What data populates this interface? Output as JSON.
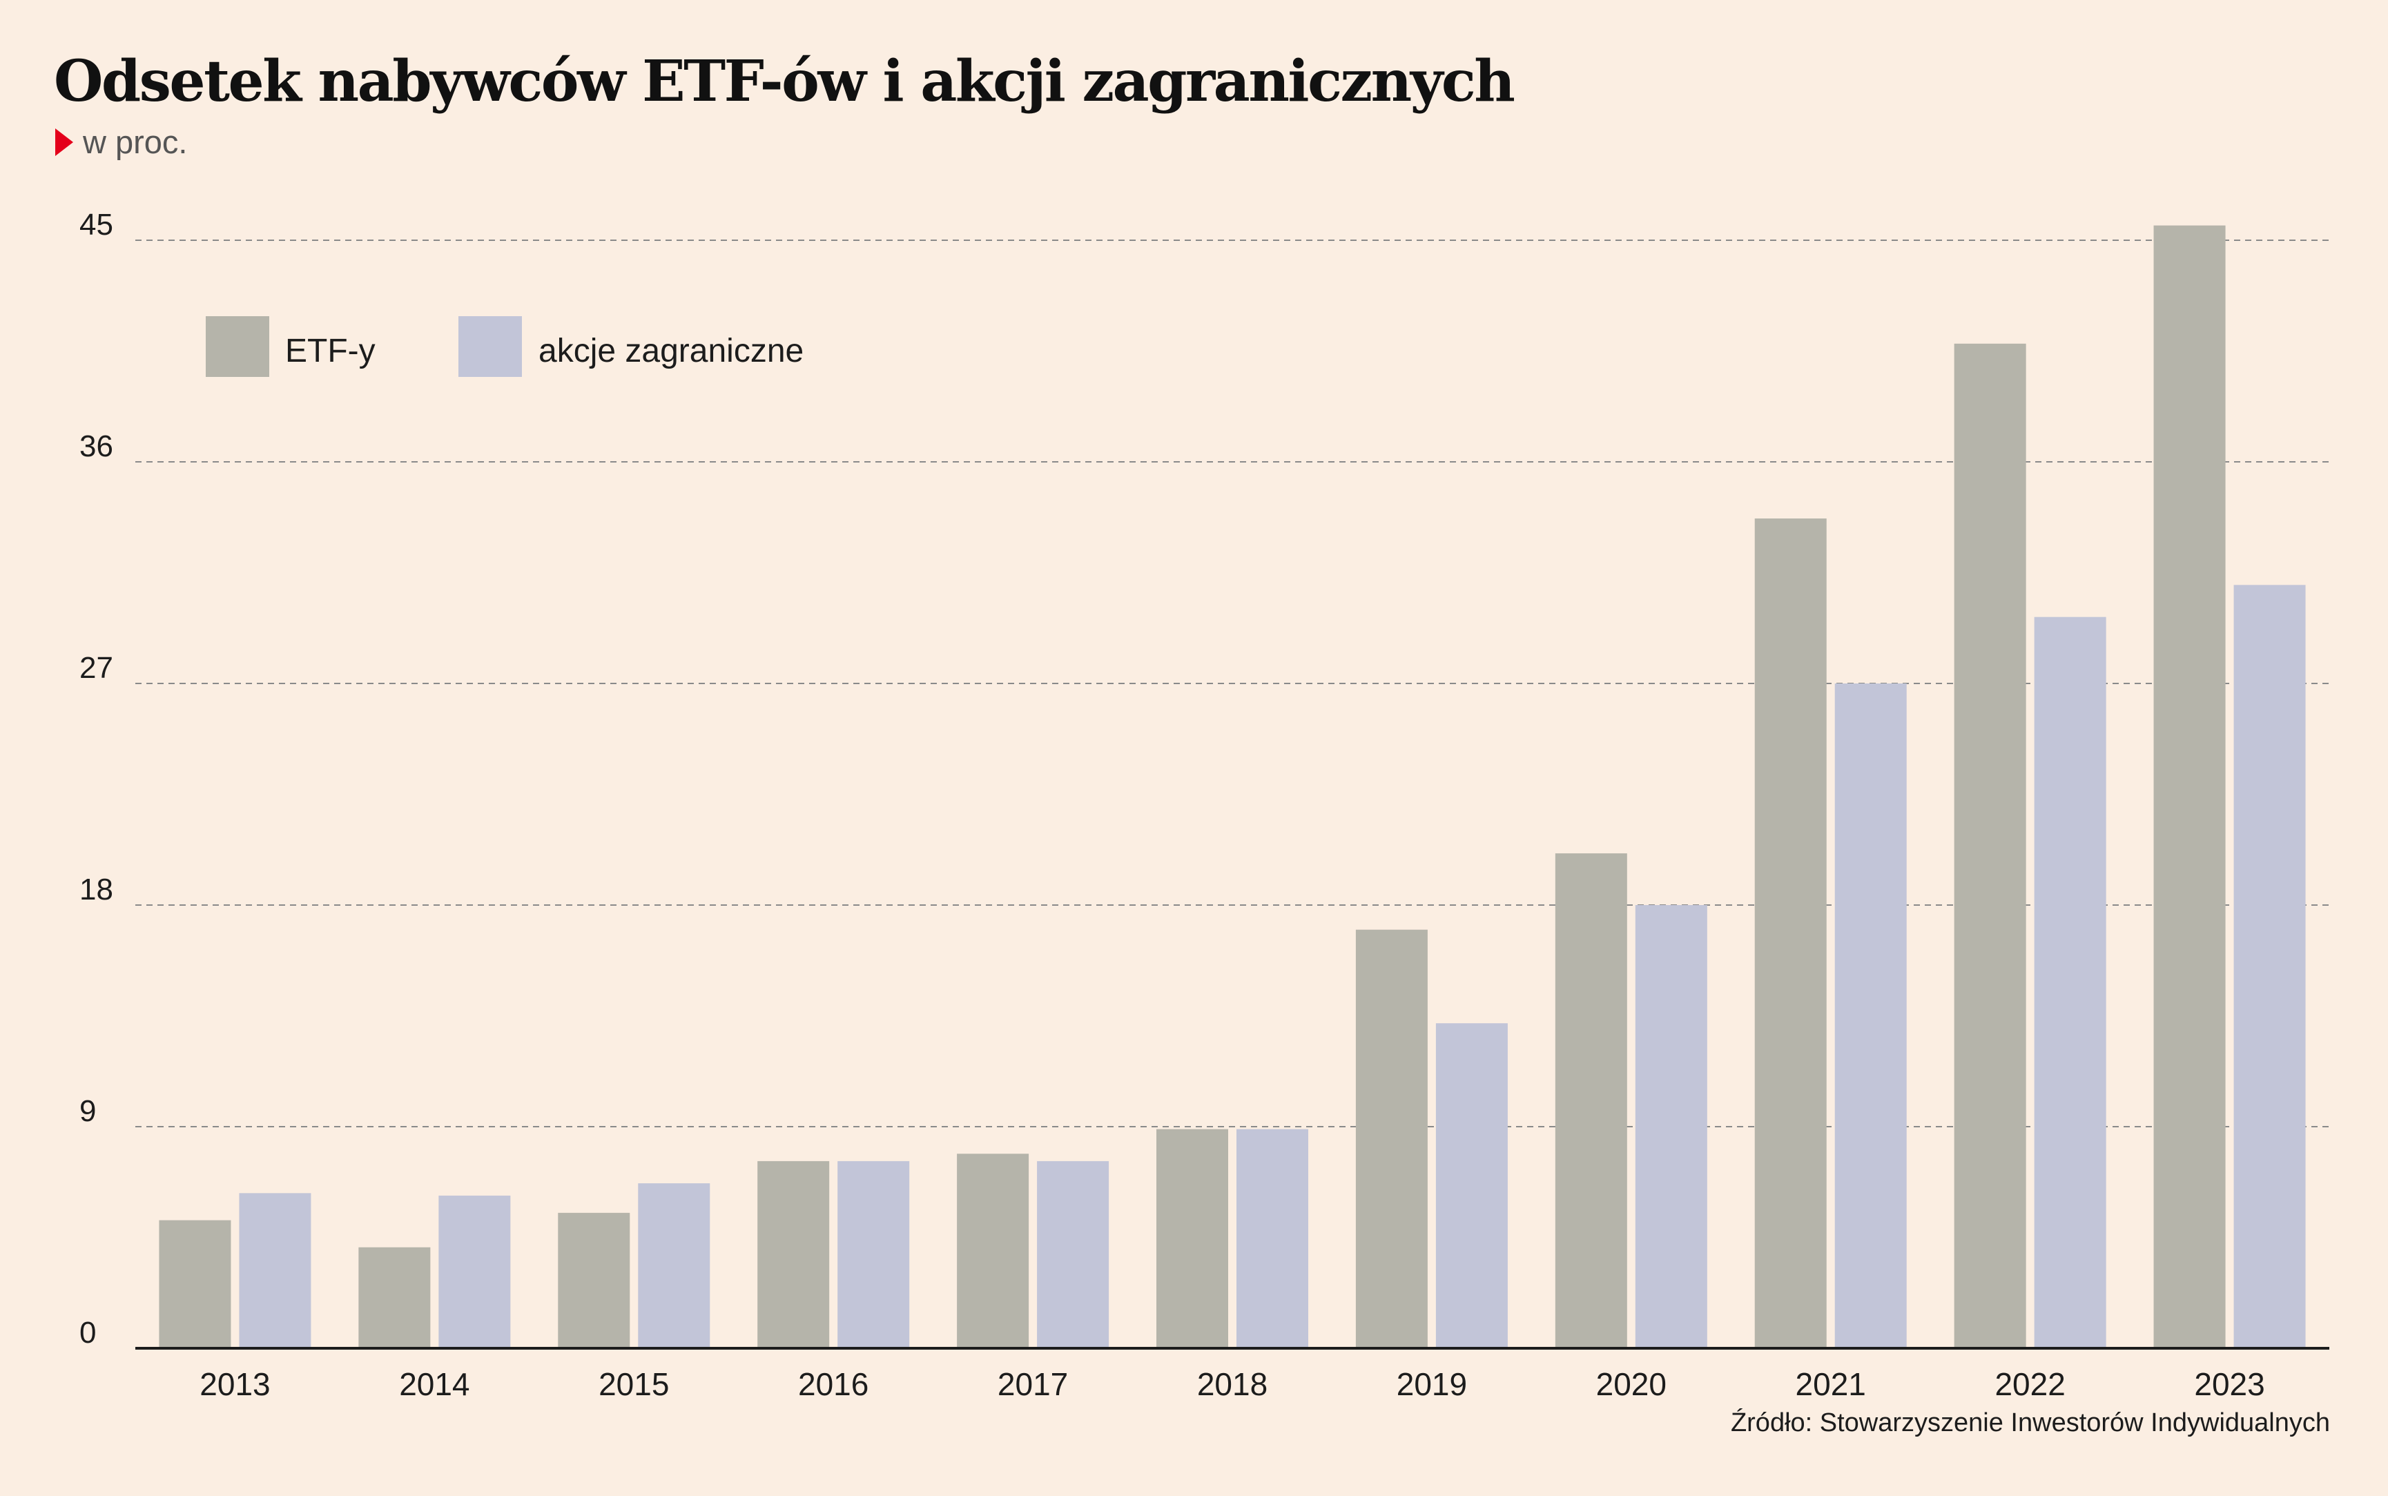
{
  "chart_data": {
    "type": "bar",
    "title": "Odsetek nabywców ETF-ów i akcji zagranicznych",
    "subtitle": "w proc.",
    "categories": [
      "2013",
      "2014",
      "2015",
      "2016",
      "2017",
      "2018",
      "2019",
      "2020",
      "2021",
      "2022",
      "2023"
    ],
    "series": [
      {
        "name": "ETF-y",
        "color": "#b5b4aa",
        "values": [
          5.2,
          4.1,
          5.5,
          7.6,
          7.9,
          8.9,
          17.0,
          20.1,
          33.7,
          40.8,
          45.6
        ]
      },
      {
        "name": "akcje zagraniczne",
        "color": "#c2c5d8",
        "values": [
          6.3,
          6.2,
          6.7,
          7.6,
          7.6,
          8.9,
          13.2,
          18.0,
          27.0,
          29.7,
          31.0
        ]
      }
    ],
    "yticks": [
      "0",
      "9",
      "18",
      "27",
      "36",
      "45"
    ],
    "ylim": [
      0,
      45
    ],
    "xlabel": "",
    "ylabel": "",
    "grid": true,
    "legend": "top-left",
    "source": "Źródło: Stowarzyszenie Inwestorów Indywidualnych"
  }
}
